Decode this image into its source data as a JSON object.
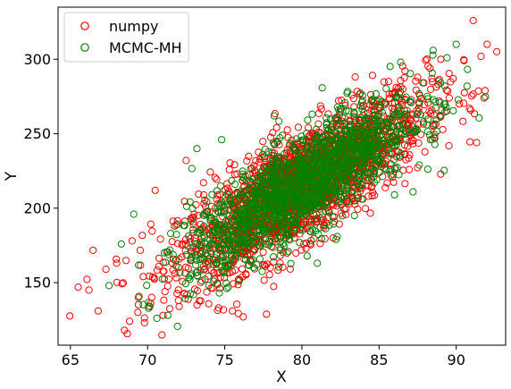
{
  "chart_data": {
    "type": "scatter",
    "xlabel": "X",
    "ylabel": "Y",
    "xlim": [
      64.2,
      93.2
    ],
    "ylim": [
      108,
      335
    ],
    "x_ticks": [
      65,
      70,
      75,
      80,
      85,
      90
    ],
    "y_ticks": [
      150,
      200,
      250,
      300
    ],
    "grid": false,
    "legend_position": "top-left",
    "marker": "hollow-circle",
    "series": [
      {
        "name": "numpy",
        "color": "#ff0000",
        "distribution": {
          "mean_x": 80,
          "mean_y": 215,
          "sd_x": 4,
          "sd_y": 30,
          "correlation": 0.8,
          "count": 2000
        },
        "points": [
          [
            65.5,
            147
          ],
          [
            66.2,
            145
          ],
          [
            66.8,
            131
          ],
          [
            67.3,
            159
          ],
          [
            68.5,
            118
          ],
          [
            69.8,
            123
          ],
          [
            70.2,
            136
          ],
          [
            71.0,
            128
          ],
          [
            72.0,
            138
          ],
          [
            74.6,
            133
          ],
          [
            75.5,
            131
          ],
          [
            76.2,
            127
          ],
          [
            87.5,
            288
          ],
          [
            88.3,
            294
          ],
          [
            89.0,
            300
          ],
          [
            89.8,
            287
          ],
          [
            90.5,
            299
          ],
          [
            91.1,
            326
          ],
          [
            91.6,
            302
          ],
          [
            92.0,
            310
          ],
          [
            91.8,
            274
          ],
          [
            90.2,
            270
          ],
          [
            69.0,
            178
          ],
          [
            68.0,
            163
          ],
          [
            70.5,
            212
          ],
          [
            72.5,
            232
          ]
        ]
      },
      {
        "name": "MCMC-MH",
        "color": "#008000",
        "distribution": {
          "mean_x": 80,
          "mean_y": 215,
          "sd_x": 3.6,
          "sd_y": 28,
          "correlation": 0.82,
          "count": 1600
        },
        "points": [
          [
            67.5,
            148
          ],
          [
            68.3,
            176
          ],
          [
            69.4,
            140
          ],
          [
            69.1,
            196
          ],
          [
            70.6,
            126
          ],
          [
            71.5,
            183
          ],
          [
            73.2,
            240
          ],
          [
            74.8,
            246
          ],
          [
            81.0,
            163
          ],
          [
            83.4,
            195
          ],
          [
            86.0,
            209
          ],
          [
            87.2,
            211
          ],
          [
            87.6,
            229
          ],
          [
            88.5,
            306
          ],
          [
            89.4,
            301
          ],
          [
            90.0,
            310
          ],
          [
            90.7,
            282
          ],
          [
            86.4,
            298
          ],
          [
            85.0,
            263
          ],
          [
            78.2,
            262
          ]
        ]
      }
    ]
  }
}
